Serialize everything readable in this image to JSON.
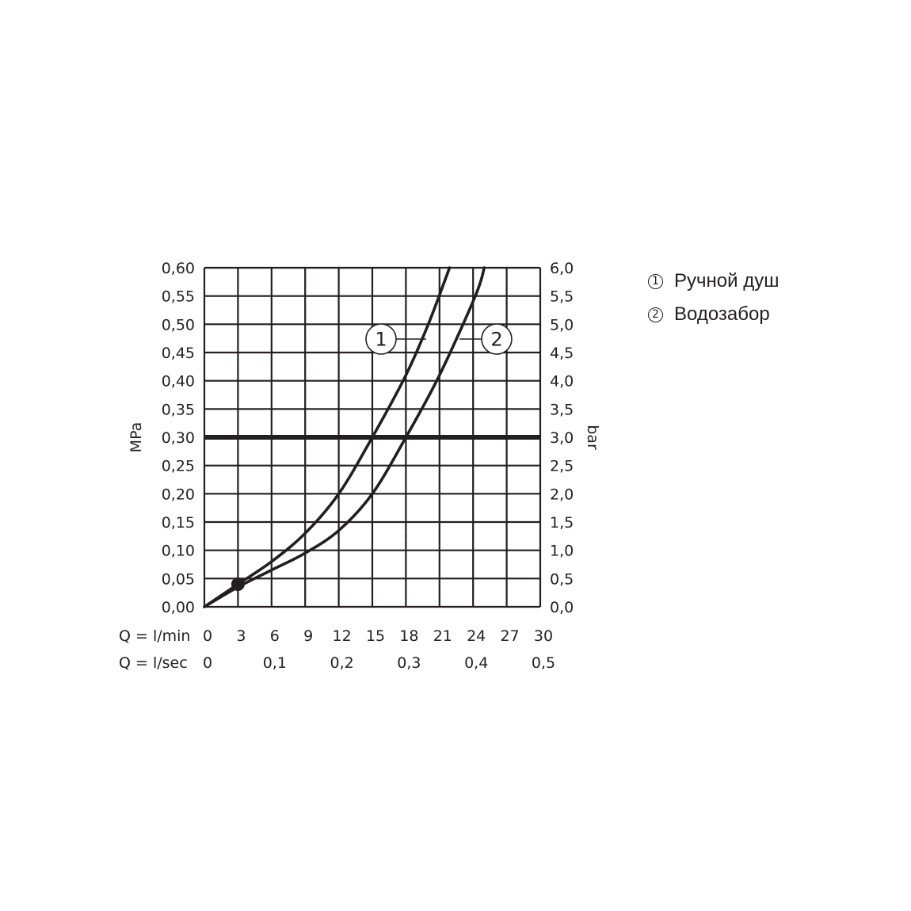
{
  "chart_data": {
    "type": "line",
    "left_axis": {
      "label": "MPa",
      "ylim": [
        0,
        0.6
      ],
      "ticks": [
        "0,00",
        "0,05",
        "0,10",
        "0,15",
        "0,20",
        "0,25",
        "0,30",
        "0,35",
        "0,40",
        "0,45",
        "0,50",
        "0,55",
        "0,60"
      ]
    },
    "right_axis": {
      "label": "bar",
      "ticks": [
        "0,0",
        "0,5",
        "1,0",
        "1,5",
        "2,0",
        "2,5",
        "3,0",
        "3,5",
        "4,0",
        "4,5",
        "5,0",
        "5,5",
        "6,0"
      ]
    },
    "x_axis": {
      "xlim": [
        0,
        30
      ],
      "lmin_label": "Q = l/min",
      "lmin_ticks": [
        "0",
        "3",
        "6",
        "9",
        "12",
        "15",
        "18",
        "21",
        "24",
        "27",
        "30"
      ],
      "lsec_label": "Q = l/sec",
      "lsec_ticks": [
        "0",
        "0,1",
        "0,2",
        "0,3",
        "0,4",
        "0,5"
      ]
    },
    "grid": true,
    "reference_pressure": 0.3,
    "dashed_drop_lines": [
      15,
      18
    ],
    "minimum_point": {
      "x": 3,
      "y": 0.04
    },
    "series": [
      {
        "name": "1",
        "points": [
          [
            0,
            0
          ],
          [
            3,
            0.04
          ],
          [
            6,
            0.08
          ],
          [
            9,
            0.13
          ],
          [
            12,
            0.2
          ],
          [
            15,
            0.3
          ],
          [
            18,
            0.41
          ],
          [
            20,
            0.5
          ],
          [
            21.9,
            0.6
          ]
        ]
      },
      {
        "name": "2",
        "points": [
          [
            0,
            0
          ],
          [
            3,
            0.035
          ],
          [
            6,
            0.065
          ],
          [
            9,
            0.095
          ],
          [
            12,
            0.135
          ],
          [
            15,
            0.2
          ],
          [
            18,
            0.3
          ],
          [
            21,
            0.41
          ],
          [
            24.2,
            0.55
          ],
          [
            25,
            0.6
          ]
        ]
      }
    ]
  },
  "legend": [
    {
      "num": "1",
      "label": "Ручной душ"
    },
    {
      "num": "2",
      "label": "Водозабор"
    }
  ]
}
